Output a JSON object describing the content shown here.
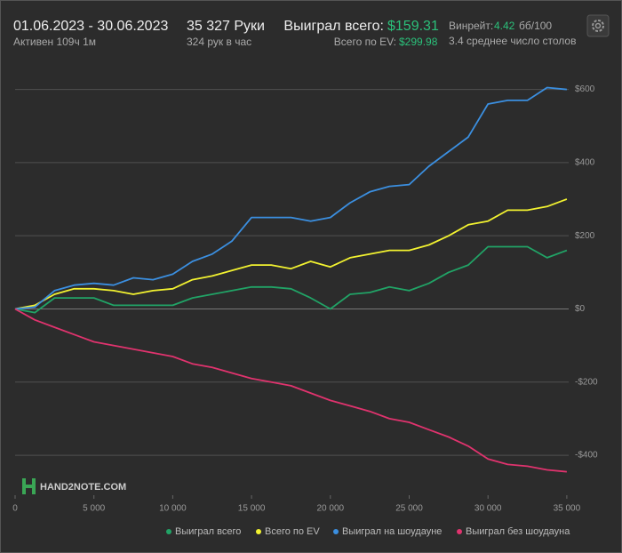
{
  "header": {
    "date_range": "01.06.2023 - 30.06.2023",
    "active": "Активен 109ч 1м",
    "hands": "35 327 Руки",
    "hands_per_hour": "324 рук в час",
    "won_label": "Выиграл всего:",
    "won_value": "$159.31",
    "ev_label": "Всего по EV:",
    "ev_value": "$299.98",
    "winrate_label": "Винрейт:",
    "winrate_value": "4.42",
    "winrate_unit": "бб/100",
    "tables": "3.4 среднее число столов",
    "watermark": "HAND2NOTE.COM"
  },
  "chart_data": {
    "type": "line",
    "x": [
      0,
      1250,
      2500,
      3750,
      5000,
      6250,
      7500,
      8750,
      10000,
      11250,
      12500,
      13750,
      15000,
      16250,
      17500,
      18750,
      20000,
      21250,
      22500,
      23750,
      25000,
      26250,
      27500,
      28750,
      30000,
      31250,
      32500,
      33750,
      35000
    ],
    "series": [
      {
        "name": "Выиграл всего",
        "color": "#21a366",
        "values": [
          0,
          -10,
          30,
          30,
          30,
          10,
          10,
          10,
          10,
          30,
          40,
          50,
          60,
          60,
          55,
          30,
          0,
          40,
          45,
          60,
          50,
          70,
          100,
          120,
          170,
          170,
          170,
          140,
          160
        ]
      },
      {
        "name": "Всего по EV",
        "color": "#f2f230",
        "values": [
          0,
          10,
          40,
          55,
          55,
          50,
          40,
          50,
          55,
          80,
          90,
          105,
          120,
          120,
          110,
          130,
          115,
          140,
          150,
          160,
          160,
          175,
          200,
          230,
          240,
          270,
          270,
          280,
          300
        ]
      },
      {
        "name": "Выиграл на шоудауне",
        "color": "#3b8fe0",
        "values": [
          0,
          5,
          50,
          65,
          70,
          65,
          85,
          80,
          95,
          130,
          150,
          185,
          250,
          250,
          250,
          240,
          250,
          290,
          320,
          335,
          340,
          390,
          430,
          470,
          560,
          570,
          570,
          605,
          600
        ]
      },
      {
        "name": "Выиграл без шоудауна",
        "color": "#e0336e",
        "values": [
          0,
          -30,
          -50,
          -70,
          -90,
          -100,
          -110,
          -120,
          -130,
          -150,
          -160,
          -175,
          -190,
          -200,
          -210,
          -230,
          -250,
          -265,
          -280,
          -300,
          -310,
          -330,
          -350,
          -375,
          -410,
          -425,
          -430,
          -440,
          -445
        ]
      }
    ],
    "xlim": [
      0,
      35400
    ],
    "ylim": [
      -480,
      650
    ],
    "xticks": [
      0,
      {
        "value": 5000,
        "label": "5 000"
      },
      {
        "value": 10000,
        "label": "10 000"
      },
      {
        "value": 15000,
        "label": "15 000"
      },
      {
        "value": 20000,
        "label": "20 000"
      },
      {
        "value": 25000,
        "label": "25 000"
      },
      {
        "value": 30000,
        "label": "30 000"
      },
      {
        "value": 35000,
        "label": "35 000"
      }
    ],
    "yticks": [
      {
        "value": -400,
        "label": "-$400"
      },
      {
        "value": -200,
        "label": "-$200"
      },
      {
        "value": 0,
        "label": "$0"
      },
      {
        "value": 200,
        "label": "$200"
      },
      {
        "value": 400,
        "label": "$400"
      },
      {
        "value": 600,
        "label": "$600"
      }
    ],
    "grid": true
  }
}
